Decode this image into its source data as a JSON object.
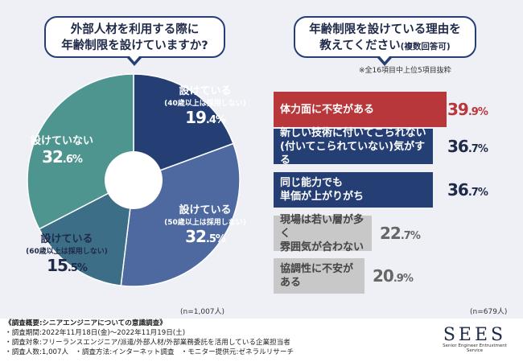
{
  "left": {
    "question_line1": "外部人材を利用する際に",
    "question_line2": "年齢制限を設けていますか?",
    "n_label": "(n=1,007人)"
  },
  "right": {
    "question_line1": "年齢制限を設けている理由を",
    "question_line2": "教えてください",
    "question_note": "(複数回答可)",
    "note": "※全16項目中上位5項目抜粋",
    "n_label": "(n=679人)"
  },
  "chart_data": [
    {
      "type": "pie",
      "slices": [
        {
          "label": "設けている",
          "sublabel": "(40歳以上は採用しない)",
          "value": 19.4,
          "value_int": "19",
          "value_dec": ".4%",
          "color": "#253f75"
        },
        {
          "label": "設けている",
          "sublabel": "(50歳以上は採用しない)",
          "value": 32.5,
          "value_int": "32",
          "value_dec": ".5%",
          "color": "#4e68a0"
        },
        {
          "label": "設けている",
          "sublabel": "(60歳以上は採用しない)",
          "value": 15.5,
          "value_int": "15",
          "value_dec": ".5%",
          "color": "#3d6e88"
        },
        {
          "label": "設けていない",
          "sublabel": "",
          "value": 32.6,
          "value_int": "32",
          "value_dec": ".6%",
          "color": "#4e958f"
        }
      ]
    },
    {
      "type": "bar",
      "orientation": "horizontal",
      "items": [
        {
          "line1": "体力面に不安がある",
          "line2": "",
          "value": 39.9,
          "value_int": "39",
          "value_dec": ".9%",
          "color": "#b8373b",
          "text_color": "#b8373b"
        },
        {
          "line1": "新しい技術に付いてこられない",
          "line2": "(付いてこられていない)気がする",
          "value": 36.7,
          "value_int": "36",
          "value_dec": ".7%",
          "color": "#253f75",
          "text_color": "#1f2a4a"
        },
        {
          "line1": "同じ能力でも",
          "line2": "単価が上がりがち",
          "value": 36.7,
          "value_int": "36",
          "value_dec": ".7%",
          "color": "#253f75",
          "text_color": "#1f2a4a"
        },
        {
          "line1": "現場は若い層が多く",
          "line2": "雰囲気が合わない",
          "value": 22.7,
          "value_int": "22",
          "value_dec": ".7%",
          "color": "#c8c8c8",
          "text_color": "#666666"
        },
        {
          "line1": "協調性に不安がある",
          "line2": "",
          "value": 20.9,
          "value_int": "20",
          "value_dec": ".9%",
          "color": "#c8c8c8",
          "text_color": "#666666"
        }
      ]
    }
  ],
  "footer": {
    "title": "《調査概要:シニアエンジニアについての意識調査》",
    "period": "・調査期間:2022年11月18日(金)〜2022年11月19日(土)",
    "target": "・調査対象:フリーランスエンジニア/派遣/外部人材/外部業務委託を活用している企業担当者",
    "count": "・調査人数:1,007人",
    "method": "・調査方法:インターネット調査",
    "monitor": "・モニター提供元:ゼネラルリサーチ"
  },
  "logo": {
    "name": "SEES",
    "tagline": "Senior Engineer Entrustment Service"
  }
}
